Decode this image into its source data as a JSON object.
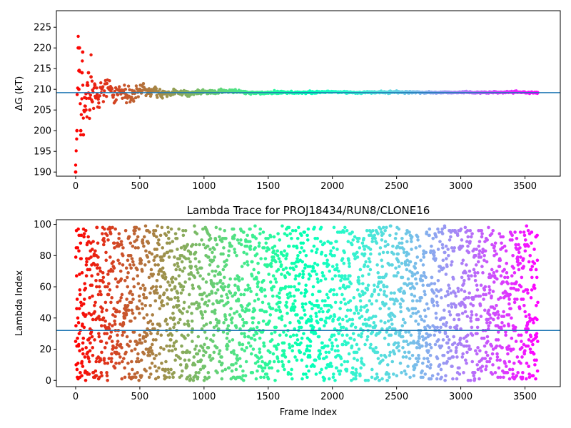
{
  "chart_data": [
    {
      "type": "scatter",
      "title": "",
      "xlabel": "",
      "ylabel": "ΔG (kT)",
      "xlim": [
        -150,
        3775
      ],
      "ylim": [
        189,
        229
      ],
      "xticks": [
        0,
        500,
        1000,
        1500,
        2000,
        2500,
        3000,
        3500
      ],
      "yticks": [
        190,
        195,
        200,
        205,
        210,
        215,
        220,
        225
      ],
      "colormap": "rainbow (red → violet along frame index)",
      "reference_line": {
        "y": 209.2,
        "color": "#1f77b4"
      },
      "series": [
        {
          "values_description": "",
          "x": [
            0,
            10,
            20,
            25,
            30,
            40,
            50,
            55,
            60,
            70,
            80,
            90,
            100,
            110,
            120,
            130,
            150,
            175,
            200,
            250,
            300,
            350,
            400,
            450,
            500,
            600,
            700,
            800,
            900,
            1000,
            1200,
            1400,
            1600,
            1800,
            2000,
            2200,
            2400,
            2600,
            2800,
            3000,
            3200,
            3400,
            3600
          ],
          "y": [
            190,
            200,
            220,
            210,
            220,
            200,
            214,
            219,
            199,
            208,
            205,
            211,
            214,
            205,
            213,
            207,
            211,
            208,
            209.5,
            211,
            208,
            210,
            209,
            208.5,
            210,
            209.5,
            209,
            209.4,
            209,
            209.3,
            209.6,
            209.1,
            209.3,
            209.2,
            209.4,
            209.2,
            209.3,
            209.3,
            209.2,
            209.3,
            209.2,
            209.3,
            209.2
          ]
        }
      ]
    },
    {
      "type": "scatter",
      "title": "Lambda Trace for PROJ18434/RUN8/CLONE16",
      "xlabel": "Frame Index",
      "ylabel": "Lambda Index",
      "xlim": [
        -150,
        3775
      ],
      "ylim": [
        -4,
        103
      ],
      "xticks": [
        0,
        500,
        1000,
        1500,
        2000,
        2500,
        3000,
        3500
      ],
      "yticks": [
        0,
        20,
        40,
        60,
        80,
        100
      ],
      "colormap": "rainbow (red → violet along frame index)",
      "reference_line": {
        "y": 32,
        "color": "#1f77b4"
      },
      "series": [
        {
          "values_description": "",
          "x_range": [
            0,
            3600
          ],
          "y_range": [
            0,
            99
          ]
        }
      ]
    }
  ]
}
